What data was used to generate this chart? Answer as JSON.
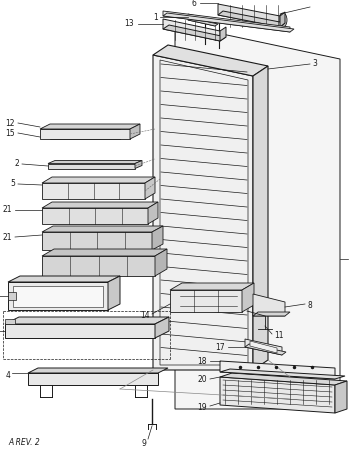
{
  "footer": "A REV. 2",
  "bg_color": "#ffffff",
  "line_color": "#1a1a1a",
  "figsize": [
    3.5,
    4.59
  ],
  "dpi": 100
}
